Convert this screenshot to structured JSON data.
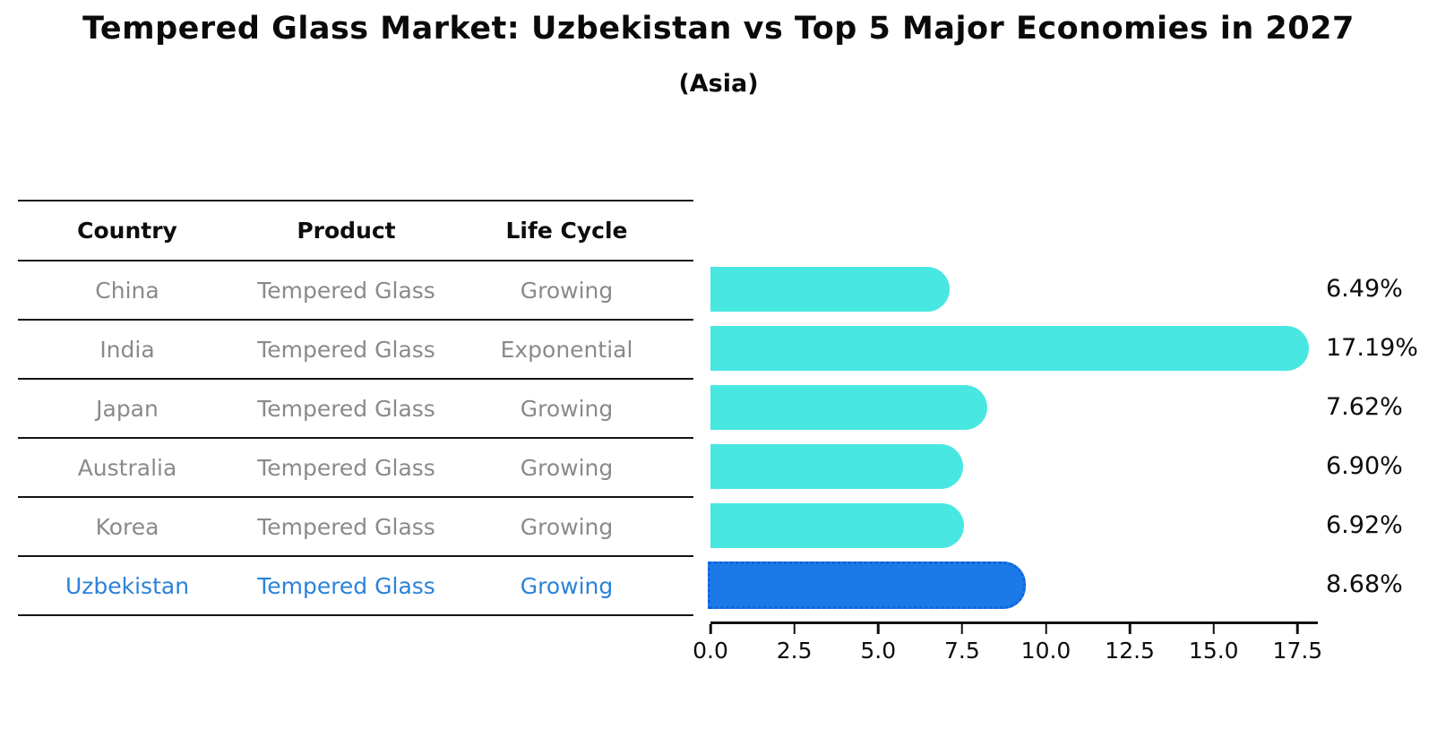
{
  "title": "Tempered Glass Market: Uzbekistan vs Top 5 Major Economies in 2027",
  "subtitle": "(Asia)",
  "table": {
    "headers": {
      "country": "Country",
      "product": "Product",
      "life_cycle": "Life Cycle"
    },
    "rows": [
      {
        "country": "China",
        "product": "Tempered Glass",
        "life_cycle": "Growing",
        "highlight": false
      },
      {
        "country": "India",
        "product": "Tempered Glass",
        "life_cycle": "Exponential",
        "highlight": false
      },
      {
        "country": "Japan",
        "product": "Tempered Glass",
        "life_cycle": "Growing",
        "highlight": false
      },
      {
        "country": "Australia",
        "product": "Tempered Glass",
        "life_cycle": "Growing",
        "highlight": false
      },
      {
        "country": "Korea",
        "product": "Tempered Glass",
        "life_cycle": "Growing",
        "highlight": false
      },
      {
        "country": "Uzbekistan",
        "product": "Tempered Glass",
        "life_cycle": "Growing",
        "highlight": true
      }
    ]
  },
  "chart_data": {
    "type": "bar",
    "orientation": "horizontal",
    "title": "Tempered Glass Market: Uzbekistan vs Top 5 Major Economies in 2027",
    "subtitle": "(Asia)",
    "categories": [
      "China",
      "India",
      "Japan",
      "Australia",
      "Korea",
      "Uzbekistan"
    ],
    "values": [
      6.49,
      17.19,
      7.62,
      6.9,
      6.92,
      8.68
    ],
    "value_labels": [
      "6.49%",
      "17.19%",
      "7.62%",
      "6.90%",
      "6.92%",
      "8.68%"
    ],
    "highlight_category": "Uzbekistan",
    "xlabel": "",
    "ylabel": "",
    "xlim": [
      0.0,
      18.1
    ],
    "x_ticks": [
      0.0,
      2.5,
      5.0,
      7.5,
      10.0,
      12.5,
      15.0,
      17.5
    ],
    "x_tick_labels": [
      "0.0",
      "2.5",
      "5.0",
      "7.5",
      "10.0",
      "12.5",
      "15.0",
      "17.5"
    ],
    "grid": false,
    "legend": "none",
    "bar_style": "rounded-right-end, flat-left-end; highlighted bar has dotted outline"
  },
  "colors": {
    "bar": "#49E7E2",
    "highlight_bar": "#1B7AE8",
    "highlight_bar_border": "#1263DC",
    "highlight_text": "#2B82D9",
    "table_text": "#8A8A8A",
    "heading_text": "#0D0D0D",
    "axis": "#111111",
    "background": "#FFFFFF"
  }
}
